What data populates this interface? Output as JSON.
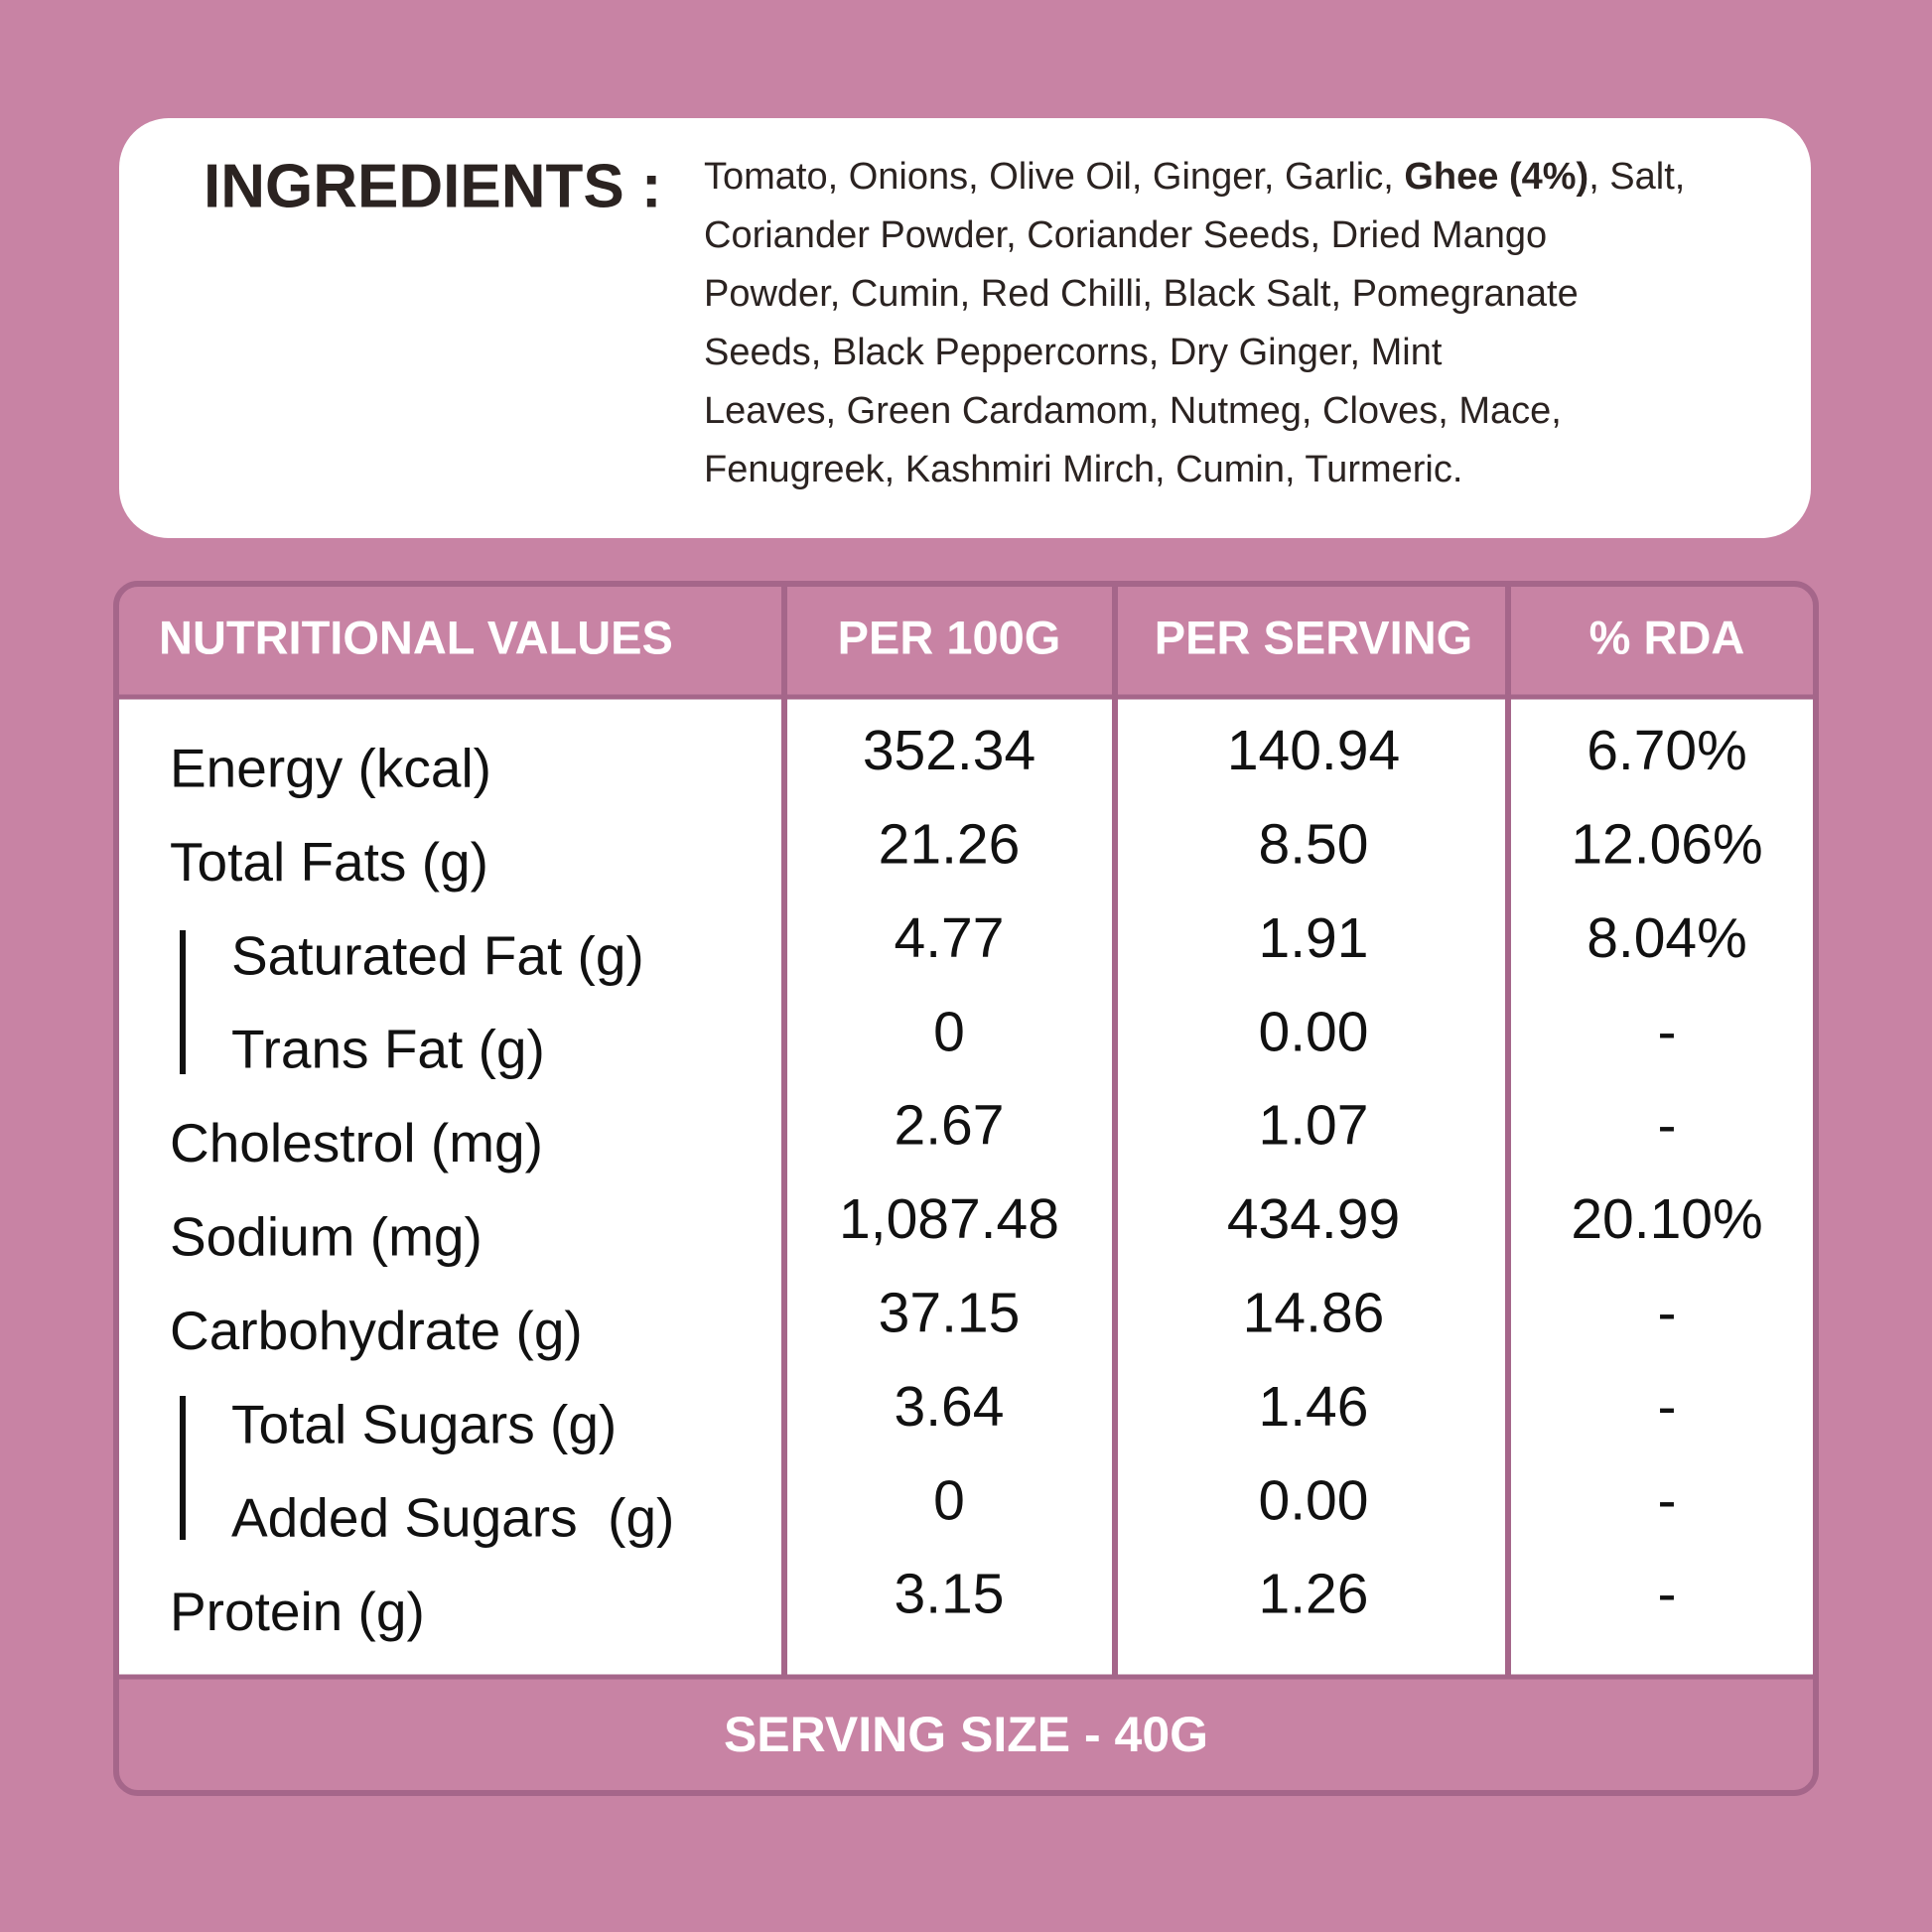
{
  "ingredients": {
    "label": "INGREDIENTS :",
    "first_line": {
      "before": "Tomato, Onions, Olive Oil, Ginger, Garlic, ",
      "bold": "Ghee (4%)",
      "after": ", Salt,"
    },
    "lines": [
      "Coriander Powder, Coriander Seeds, Dried Mango",
      "Powder, Cumin, Red Chilli, Black Salt, Pomegranate",
      "Seeds, Black Peppercorns, Dry Ginger, Mint",
      "Leaves, Green Cardamom, Nutmeg, Cloves, Mace,",
      "Fenugreek, Kashmiri Mirch, Cumin, Turmeric."
    ]
  },
  "table": {
    "header": [
      "NUTRITIONAL VALUES",
      "PER 100G",
      "PER SERVING",
      "% RDA"
    ],
    "rows": [
      [
        "Energy (kcal)",
        "352.34",
        "140.94",
        "6.70%"
      ],
      [
        "Total Fats (g)",
        "21.26",
        "8.50",
        "12.06%"
      ],
      [
        "Saturated Fat (g)",
        "4.77",
        "1.91",
        "8.04%"
      ],
      [
        "Trans Fat (g)",
        "0",
        "0.00",
        "-"
      ],
      [
        "Cholestrol (mg)",
        "2.67",
        "1.07",
        "-"
      ],
      [
        "Sodium (mg)",
        "1,087.48",
        "434.99",
        "20.10%"
      ],
      [
        "Carbohydrate (g)",
        "37.15",
        "14.86",
        "-"
      ],
      [
        "Total Sugars (g)",
        "3.64",
        "1.46",
        "-"
      ],
      [
        "Added Sugars  (g)",
        "0",
        "0.00",
        "-"
      ],
      [
        "Protein (g)",
        "3.15",
        "1.26",
        "-"
      ]
    ],
    "footer": "SERVING SIZE - 40G"
  }
}
